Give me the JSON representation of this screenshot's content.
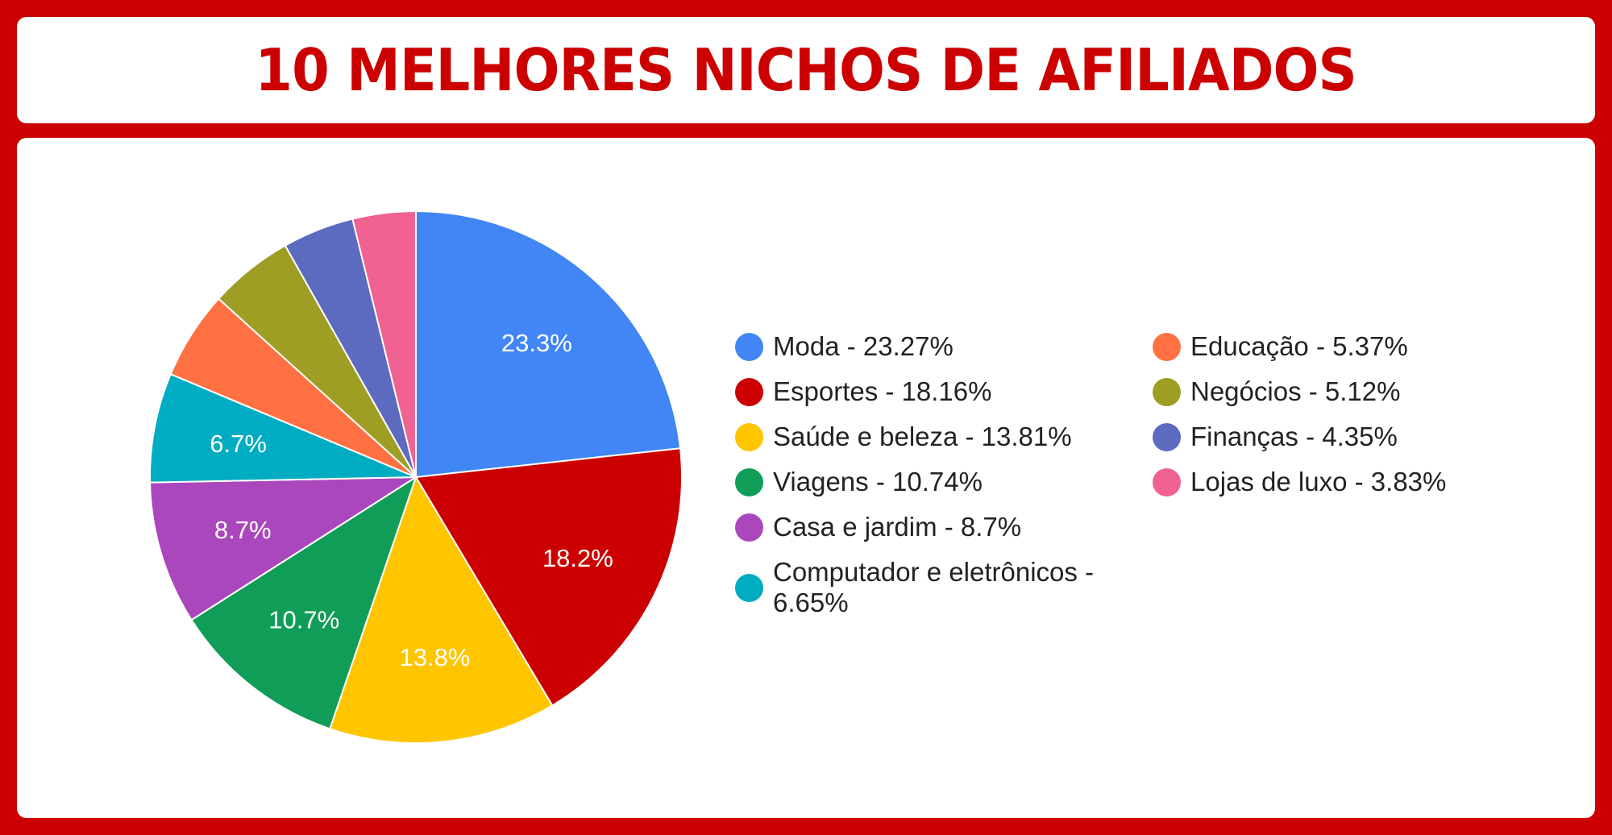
{
  "header": {
    "title": "10 MELHORES NICHOS DE AFILIADOS"
  },
  "chart_data": {
    "type": "pie",
    "title": "10 MELHORES NICHOS DE AFILIADOS",
    "categories": [
      "Moda",
      "Esportes",
      "Saúde e beleza",
      "Viagens",
      "Casa e jardim",
      "Computador e eletrônicos",
      "Educação",
      "Negócios",
      "Finanças",
      "Lojas de luxo"
    ],
    "values": [
      23.27,
      18.16,
      13.81,
      10.74,
      8.7,
      6.65,
      5.37,
      5.12,
      4.35,
      3.83
    ],
    "colors": [
      "#4285f4",
      "#cc0000",
      "#ffc600",
      "#109d58",
      "#ab47bc",
      "#00acc1",
      "#ff7043",
      "#9e9d24",
      "#5c6bc0",
      "#f06292"
    ],
    "slice_labels": [
      "23.3%",
      "18.2%",
      "13.8%",
      "10.7%",
      "8.7%",
      "6.7%",
      "",
      "",
      "",
      ""
    ],
    "legend": [
      "Moda - 23.27%",
      "Esportes - 18.16%",
      "Saúde e beleza - 13.81%",
      "Viagens - 10.74%",
      "Casa e jardim - 8.7%",
      "Computador e eletrônicos - 6.65%",
      "Educação - 5.37%",
      "Negócios - 5.12%",
      "Finanças - 4.35%",
      "Lojas de luxo - 3.83%"
    ],
    "legend_position": "right"
  },
  "colors": {
    "frame": "#cc0000",
    "panel": "#ffffff",
    "title": "#cc0000",
    "legend_text": "#222222"
  }
}
